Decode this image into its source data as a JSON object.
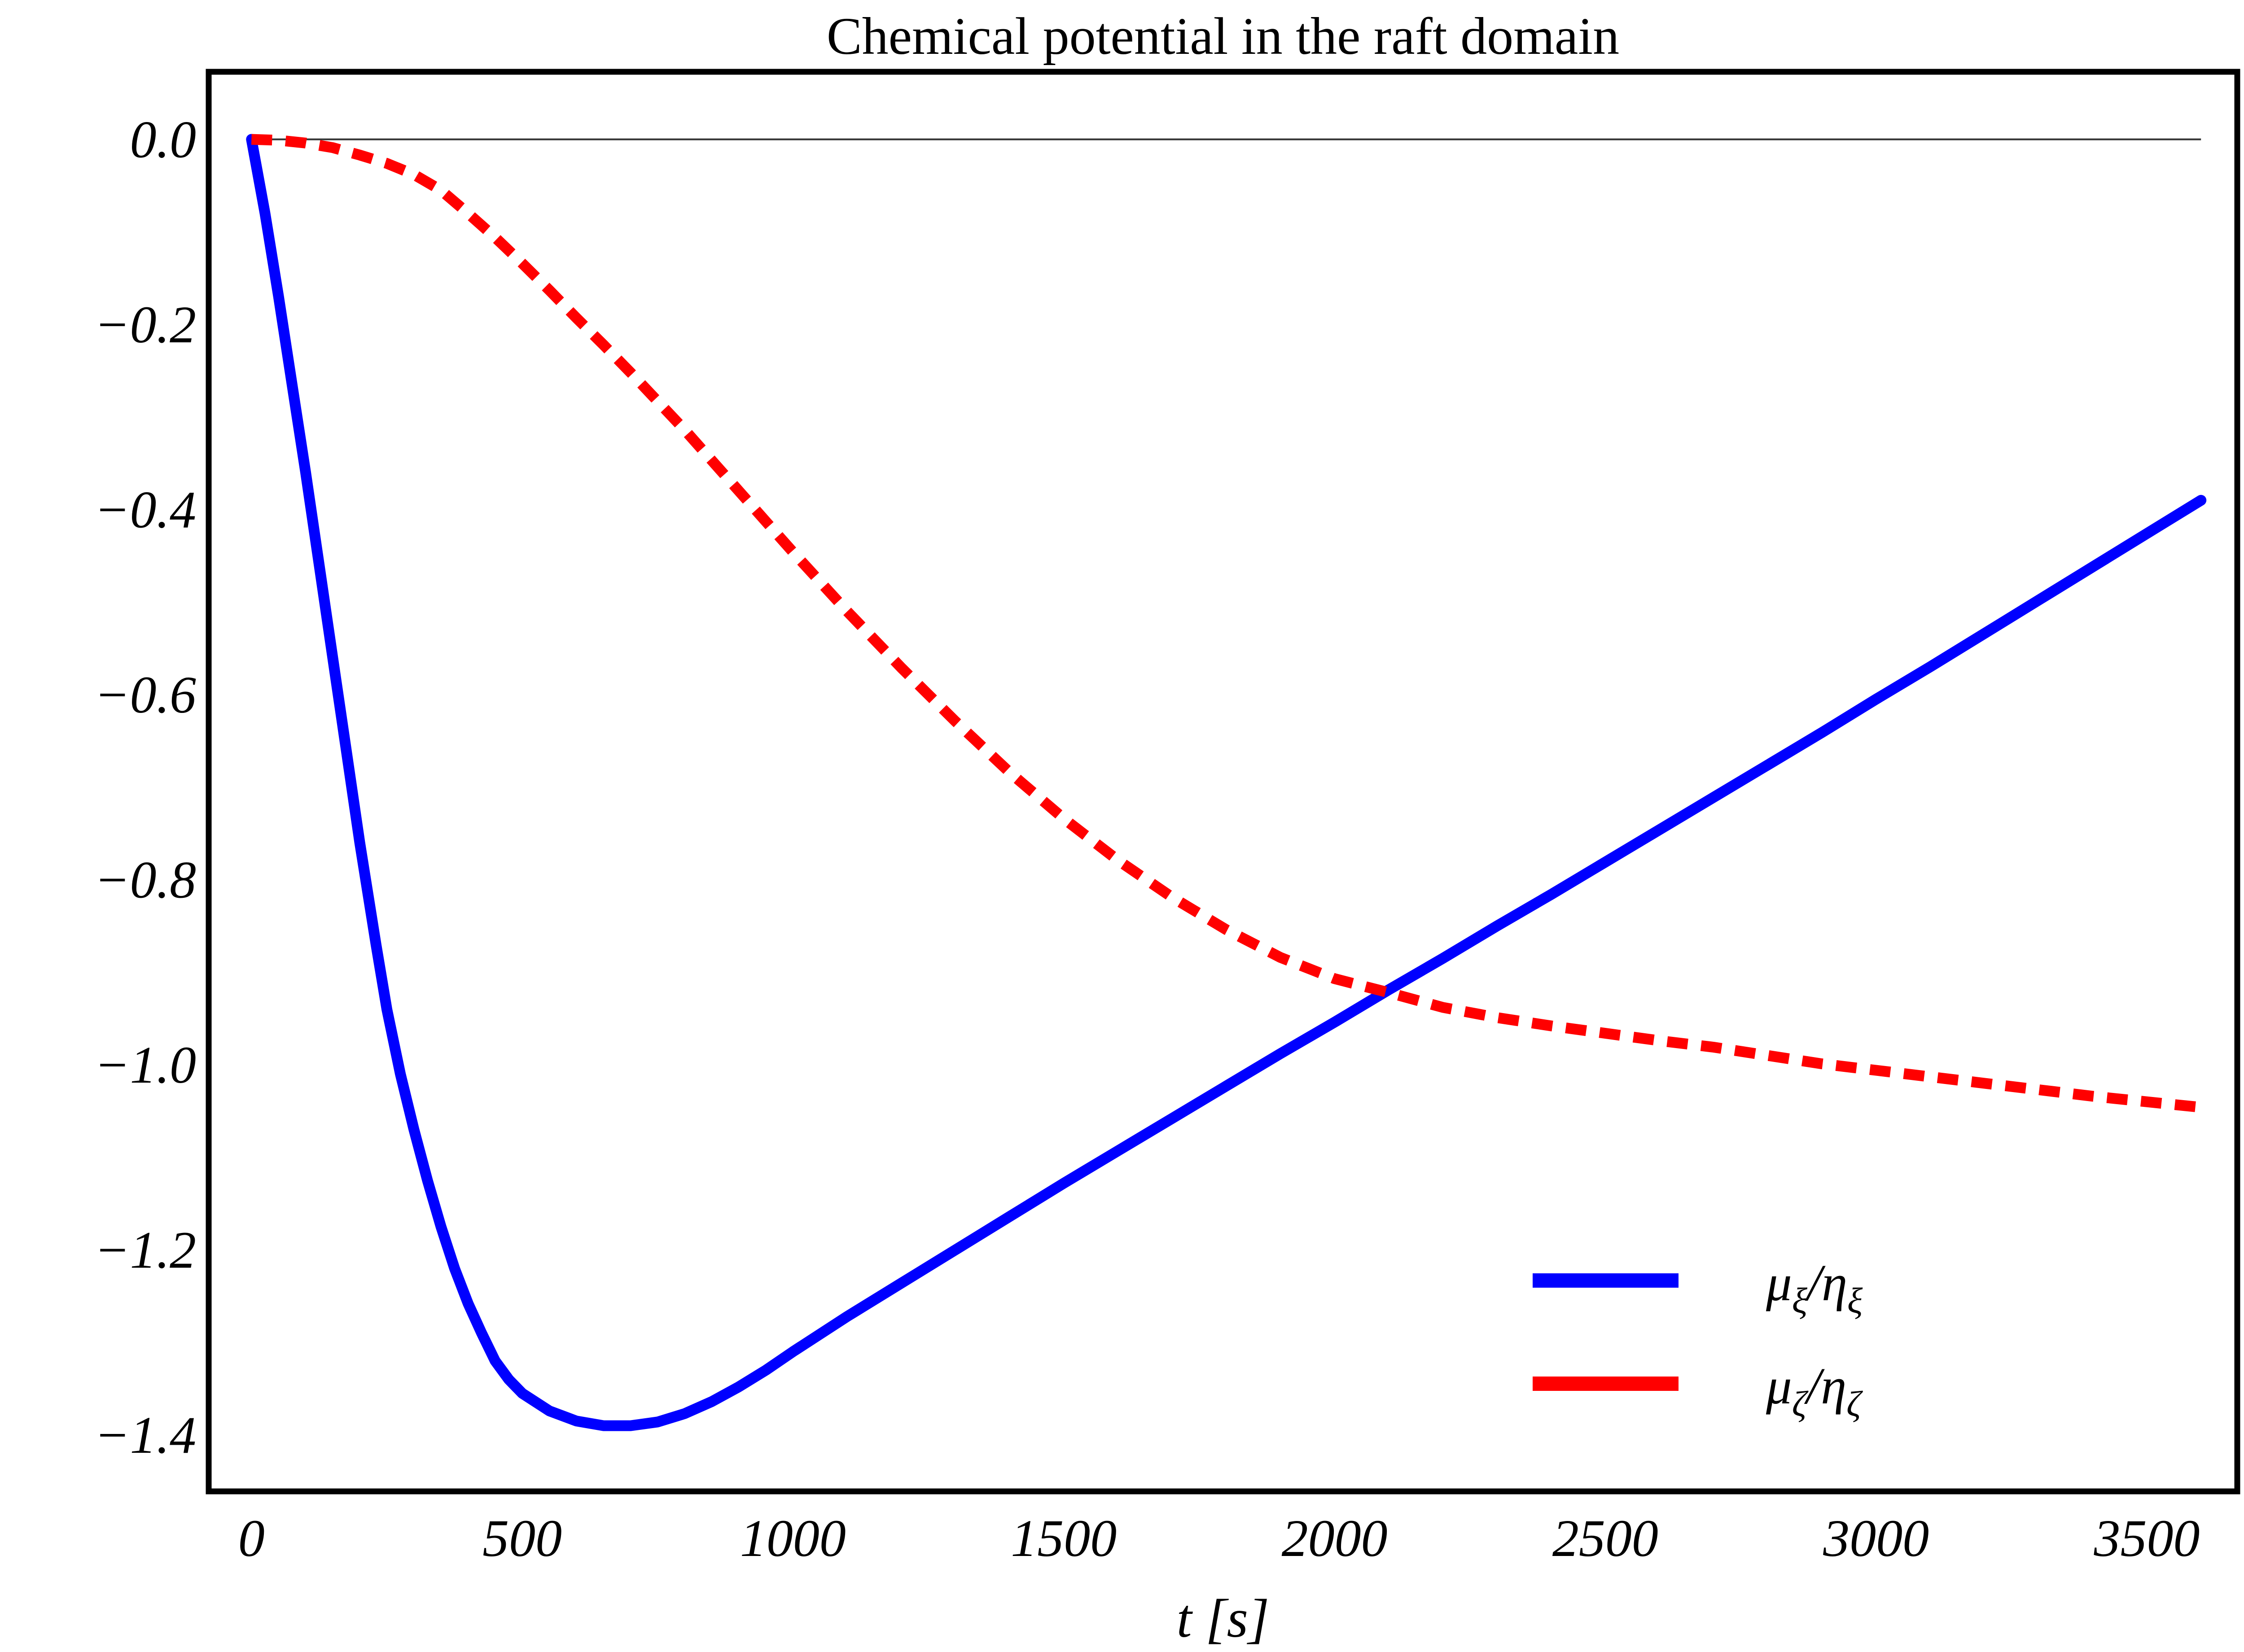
{
  "title": "Chemical potential in the raft domain",
  "chart_data": {
    "type": "line",
    "title": "Chemical potential in the raft domain",
    "xlabel": "t [s]",
    "ylabel": "",
    "xlim": [
      -79,
      3667
    ],
    "ylim": [
      -1.461,
      0.073
    ],
    "grid": false,
    "legend_position": "inside-bottom-right",
    "frame_color": "#000000",
    "zero_line": {
      "value": 0,
      "from": 0,
      "to": 3600,
      "color": "#333333"
    },
    "x_ticks": {
      "values": [
        0,
        500,
        1000,
        1500,
        2000,
        2500,
        3000,
        3500
      ],
      "labels": [
        "0",
        "500",
        "1000",
        "1500",
        "2000",
        "2500",
        "3000",
        "3500"
      ]
    },
    "y_ticks": {
      "values": [
        0,
        -0.2,
        -0.4,
        -0.6,
        -0.8,
        -1.0,
        -1.2,
        -1.4
      ],
      "labels": [
        "0.0",
        "−0.2",
        "−0.4",
        "−0.6",
        "−0.8",
        "−1.0",
        "−1.2",
        "−1.4"
      ]
    },
    "series": [
      {
        "name": "mu_xi_over_eta_xi",
        "label_text": "μξ/ηξ",
        "label": {
          "num": "μ",
          "num_sub": "ξ",
          "sep": "/",
          "den": "η",
          "den_sub": "ξ"
        },
        "color": "#0000ff",
        "style": "solid",
        "points": [
          [
            0,
            0
          ],
          [
            25,
            -0.08
          ],
          [
            50,
            -0.17
          ],
          [
            75,
            -0.265
          ],
          [
            100,
            -0.36
          ],
          [
            125,
            -0.46
          ],
          [
            150,
            -0.56
          ],
          [
            175,
            -0.66
          ],
          [
            200,
            -0.76
          ],
          [
            230,
            -0.87
          ],
          [
            250,
            -0.94
          ],
          [
            275,
            -1.01
          ],
          [
            300,
            -1.07
          ],
          [
            325,
            -1.125
          ],
          [
            350,
            -1.175
          ],
          [
            375,
            -1.22
          ],
          [
            400,
            -1.258
          ],
          [
            425,
            -1.29
          ],
          [
            450,
            -1.32
          ],
          [
            475,
            -1.34
          ],
          [
            500,
            -1.355
          ],
          [
            550,
            -1.374
          ],
          [
            600,
            -1.385
          ],
          [
            650,
            -1.39
          ],
          [
            700,
            -1.39
          ],
          [
            750,
            -1.386
          ],
          [
            800,
            -1.377
          ],
          [
            850,
            -1.364
          ],
          [
            900,
            -1.348
          ],
          [
            950,
            -1.33
          ],
          [
            1000,
            -1.31
          ],
          [
            1100,
            -1.272
          ],
          [
            1200,
            -1.236
          ],
          [
            1300,
            -1.2
          ],
          [
            1400,
            -1.164
          ],
          [
            1500,
            -1.128
          ],
          [
            1600,
            -1.093
          ],
          [
            1700,
            -1.058
          ],
          [
            1800,
            -1.023
          ],
          [
            1900,
            -0.988
          ],
          [
            2000,
            -0.954
          ],
          [
            2100,
            -0.919
          ],
          [
            2200,
            -0.885
          ],
          [
            2300,
            -0.85
          ],
          [
            2400,
            -0.816
          ],
          [
            2500,
            -0.781
          ],
          [
            2600,
            -0.746
          ],
          [
            2700,
            -0.711
          ],
          [
            2800,
            -0.676
          ],
          [
            2900,
            -0.641
          ],
          [
            3000,
            -0.605
          ],
          [
            3100,
            -0.57
          ],
          [
            3200,
            -0.534
          ],
          [
            3300,
            -0.498
          ],
          [
            3400,
            -0.462
          ],
          [
            3500,
            -0.426
          ],
          [
            3600,
            -0.39
          ]
        ]
      },
      {
        "name": "mu_zeta_over_eta_zeta",
        "label_text": "μζ/ηζ",
        "label": {
          "num": "μ",
          "num_sub": "ζ",
          "sep": "/",
          "den": "η",
          "den_sub": "ζ"
        },
        "color": "#ff0000",
        "style": "dashed",
        "points": [
          [
            0,
            0
          ],
          [
            50,
            -0.001
          ],
          [
            100,
            -0.004
          ],
          [
            150,
            -0.009
          ],
          [
            200,
            -0.017
          ],
          [
            250,
            -0.026
          ],
          [
            300,
            -0.038
          ],
          [
            350,
            -0.055
          ],
          [
            400,
            -0.08
          ],
          [
            450,
            -0.106
          ],
          [
            500,
            -0.134
          ],
          [
            550,
            -0.163
          ],
          [
            600,
            -0.193
          ],
          [
            650,
            -0.222
          ],
          [
            700,
            -0.252
          ],
          [
            750,
            -0.283
          ],
          [
            800,
            -0.314
          ],
          [
            850,
            -0.347
          ],
          [
            900,
            -0.38
          ],
          [
            950,
            -0.413
          ],
          [
            1000,
            -0.446
          ],
          [
            1100,
            -0.51
          ],
          [
            1200,
            -0.571
          ],
          [
            1300,
            -0.629
          ],
          [
            1400,
            -0.684
          ],
          [
            1500,
            -0.734
          ],
          [
            1600,
            -0.779
          ],
          [
            1700,
            -0.819
          ],
          [
            1800,
            -0.854
          ],
          [
            1900,
            -0.884
          ],
          [
            2000,
            -0.907
          ],
          [
            2100,
            -0.922
          ],
          [
            2200,
            -0.938
          ],
          [
            2300,
            -0.949
          ],
          [
            2400,
            -0.958
          ],
          [
            2500,
            -0.966
          ],
          [
            2600,
            -0.974
          ],
          [
            2700,
            -0.981
          ],
          [
            2800,
            -0.99
          ],
          [
            2900,
            -0.999
          ],
          [
            3000,
            -1.006
          ],
          [
            3100,
            -1.013
          ],
          [
            3200,
            -1.02
          ],
          [
            3300,
            -1.027
          ],
          [
            3400,
            -1.034
          ],
          [
            3500,
            -1.04
          ],
          [
            3600,
            -1.046
          ]
        ]
      }
    ]
  }
}
